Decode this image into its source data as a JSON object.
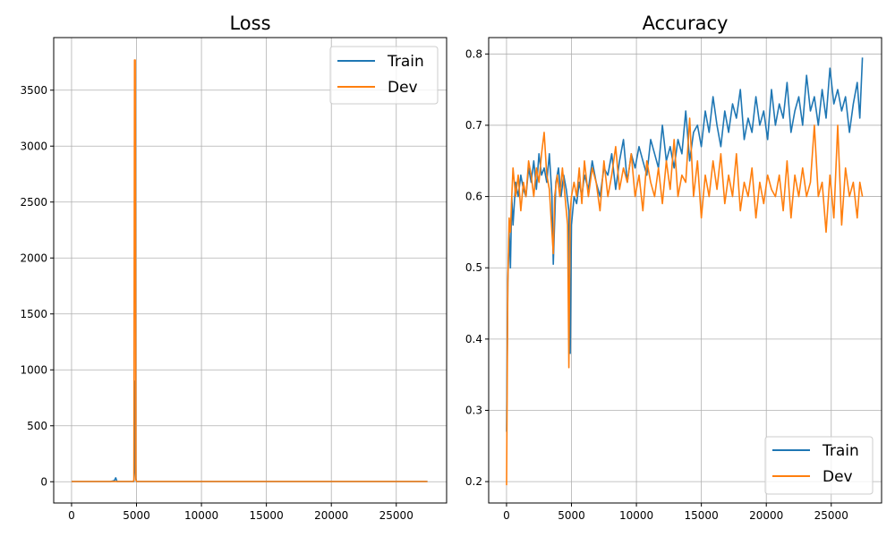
{
  "chart_data": [
    {
      "type": "line",
      "title": "Loss",
      "xlabel": "",
      "ylabel": "",
      "xlim": [
        -1375,
        28875
      ],
      "ylim": [
        -190,
        3970
      ],
      "xticks": [
        0,
        5000,
        10000,
        15000,
        20000,
        25000
      ],
      "yticks": [
        0,
        500,
        1000,
        1500,
        2000,
        2500,
        3000,
        3500
      ],
      "grid": true,
      "legend_position": "top-right",
      "series": [
        {
          "name": "Train",
          "color": "#1f77b4",
          "x": [
            0,
            1000,
            2000,
            3000,
            3300,
            3400,
            3500,
            4000,
            4800,
            4850,
            4900,
            4950,
            5000,
            6000,
            10000,
            15000,
            20000,
            25000,
            27400
          ],
          "y": [
            2,
            2,
            2,
            2,
            10,
            35,
            3,
            2,
            2,
            100,
            900,
            30,
            2,
            2,
            2,
            2,
            2,
            2,
            2
          ]
        },
        {
          "name": "Dev",
          "color": "#ff7f0e",
          "x": [
            0,
            1000,
            2000,
            3000,
            4000,
            4750,
            4800,
            4850,
            4900,
            4950,
            5000,
            6000,
            10000,
            15000,
            20000,
            25000,
            27400
          ],
          "y": [
            2,
            2,
            2,
            2,
            2,
            2,
            15,
            3770,
            3770,
            20,
            2,
            2,
            2,
            2,
            2,
            2,
            2
          ]
        }
      ]
    },
    {
      "type": "line",
      "title": "Accuracy",
      "xlabel": "",
      "ylabel": "",
      "xlim": [
        -1375,
        28875
      ],
      "ylim": [
        0.17,
        0.823
      ],
      "xticks": [
        0,
        5000,
        10000,
        15000,
        20000,
        25000
      ],
      "yticks": [
        0.2,
        0.3,
        0.4,
        0.5,
        0.6,
        0.7,
        0.8
      ],
      "grid": true,
      "legend_position": "bottom-right",
      "series": [
        {
          "name": "Train",
          "color": "#1f77b4",
          "x": [
            0,
            100,
            200,
            300,
            400,
            500,
            700,
            900,
            1100,
            1300,
            1500,
            1700,
            1900,
            2100,
            2300,
            2500,
            2700,
            2900,
            3100,
            3300,
            3500,
            3600,
            3800,
            4000,
            4200,
            4400,
            4600,
            4800,
            4900,
            5000,
            5200,
            5400,
            5600,
            5800,
            6000,
            6300,
            6600,
            6900,
            7200,
            7500,
            7800,
            8100,
            8400,
            8700,
            9000,
            9300,
            9600,
            9900,
            10200,
            10500,
            10800,
            11100,
            11400,
            11700,
            12000,
            12300,
            12600,
            12900,
            13200,
            13500,
            13800,
            14100,
            14400,
            14700,
            15000,
            15300,
            15600,
            15900,
            16200,
            16500,
            16800,
            17100,
            17400,
            17700,
            18000,
            18300,
            18600,
            18900,
            19200,
            19500,
            19800,
            20100,
            20400,
            20700,
            21000,
            21300,
            21600,
            21900,
            22200,
            22500,
            22800,
            23100,
            23400,
            23700,
            24000,
            24300,
            24600,
            24900,
            25200,
            25500,
            25800,
            26100,
            26400,
            26700,
            27000,
            27200,
            27400
          ],
          "y": [
            0.27,
            0.48,
            0.55,
            0.5,
            0.6,
            0.56,
            0.62,
            0.6,
            0.63,
            0.61,
            0.6,
            0.64,
            0.62,
            0.65,
            0.61,
            0.66,
            0.63,
            0.64,
            0.62,
            0.66,
            0.6,
            0.505,
            0.62,
            0.64,
            0.6,
            0.63,
            0.61,
            0.58,
            0.38,
            0.56,
            0.6,
            0.59,
            0.62,
            0.6,
            0.63,
            0.61,
            0.65,
            0.62,
            0.6,
            0.64,
            0.63,
            0.66,
            0.61,
            0.65,
            0.68,
            0.62,
            0.66,
            0.64,
            0.67,
            0.65,
            0.63,
            0.68,
            0.66,
            0.64,
            0.7,
            0.65,
            0.67,
            0.64,
            0.68,
            0.66,
            0.72,
            0.65,
            0.69,
            0.7,
            0.67,
            0.72,
            0.69,
            0.74,
            0.7,
            0.67,
            0.72,
            0.69,
            0.73,
            0.71,
            0.75,
            0.68,
            0.71,
            0.69,
            0.74,
            0.7,
            0.72,
            0.68,
            0.75,
            0.7,
            0.73,
            0.71,
            0.76,
            0.69,
            0.72,
            0.74,
            0.7,
            0.77,
            0.72,
            0.74,
            0.7,
            0.75,
            0.71,
            0.78,
            0.73,
            0.75,
            0.72,
            0.74,
            0.69,
            0.73,
            0.76,
            0.71,
            0.795
          ]
        },
        {
          "name": "Dev",
          "color": "#ff7f0e",
          "x": [
            0,
            100,
            200,
            300,
            400,
            500,
            700,
            900,
            1100,
            1300,
            1500,
            1700,
            1900,
            2100,
            2300,
            2500,
            2700,
            2900,
            3100,
            3300,
            3500,
            3600,
            3700,
            3900,
            4100,
            4300,
            4500,
            4700,
            4800,
            4900,
            5000,
            5200,
            5400,
            5600,
            5800,
            6000,
            6300,
            6600,
            6900,
            7200,
            7500,
            7800,
            8100,
            8400,
            8700,
            9000,
            9300,
            9600,
            9900,
            10200,
            10500,
            10800,
            11100,
            11400,
            11700,
            12000,
            12300,
            12600,
            12900,
            13200,
            13500,
            13800,
            14100,
            14400,
            14700,
            15000,
            15300,
            15600,
            15900,
            16200,
            16500,
            16800,
            17100,
            17400,
            17700,
            18000,
            18300,
            18600,
            18900,
            19200,
            19500,
            19800,
            20100,
            20400,
            20700,
            21000,
            21300,
            21600,
            21900,
            22200,
            22500,
            22800,
            23100,
            23400,
            23700,
            24000,
            24300,
            24600,
            24900,
            25200,
            25500,
            25800,
            26100,
            26400,
            26700,
            27000,
            27200,
            27400
          ],
          "y": [
            0.195,
            0.48,
            0.57,
            0.55,
            0.6,
            0.64,
            0.6,
            0.63,
            0.58,
            0.62,
            0.6,
            0.65,
            0.63,
            0.6,
            0.64,
            0.62,
            0.66,
            0.69,
            0.63,
            0.61,
            0.55,
            0.52,
            0.6,
            0.63,
            0.6,
            0.64,
            0.6,
            0.56,
            0.36,
            0.58,
            0.6,
            0.62,
            0.6,
            0.64,
            0.59,
            0.65,
            0.6,
            0.64,
            0.62,
            0.58,
            0.65,
            0.6,
            0.63,
            0.67,
            0.61,
            0.64,
            0.62,
            0.66,
            0.6,
            0.63,
            0.58,
            0.65,
            0.62,
            0.6,
            0.64,
            0.59,
            0.65,
            0.61,
            0.68,
            0.6,
            0.63,
            0.62,
            0.71,
            0.6,
            0.65,
            0.57,
            0.63,
            0.6,
            0.65,
            0.61,
            0.66,
            0.59,
            0.63,
            0.6,
            0.66,
            0.58,
            0.62,
            0.6,
            0.64,
            0.57,
            0.62,
            0.59,
            0.63,
            0.61,
            0.6,
            0.63,
            0.58,
            0.65,
            0.57,
            0.63,
            0.6,
            0.64,
            0.6,
            0.62,
            0.7,
            0.6,
            0.62,
            0.55,
            0.63,
            0.57,
            0.7,
            0.56,
            0.64,
            0.6,
            0.62,
            0.57,
            0.62,
            0.6
          ]
        }
      ]
    }
  ]
}
